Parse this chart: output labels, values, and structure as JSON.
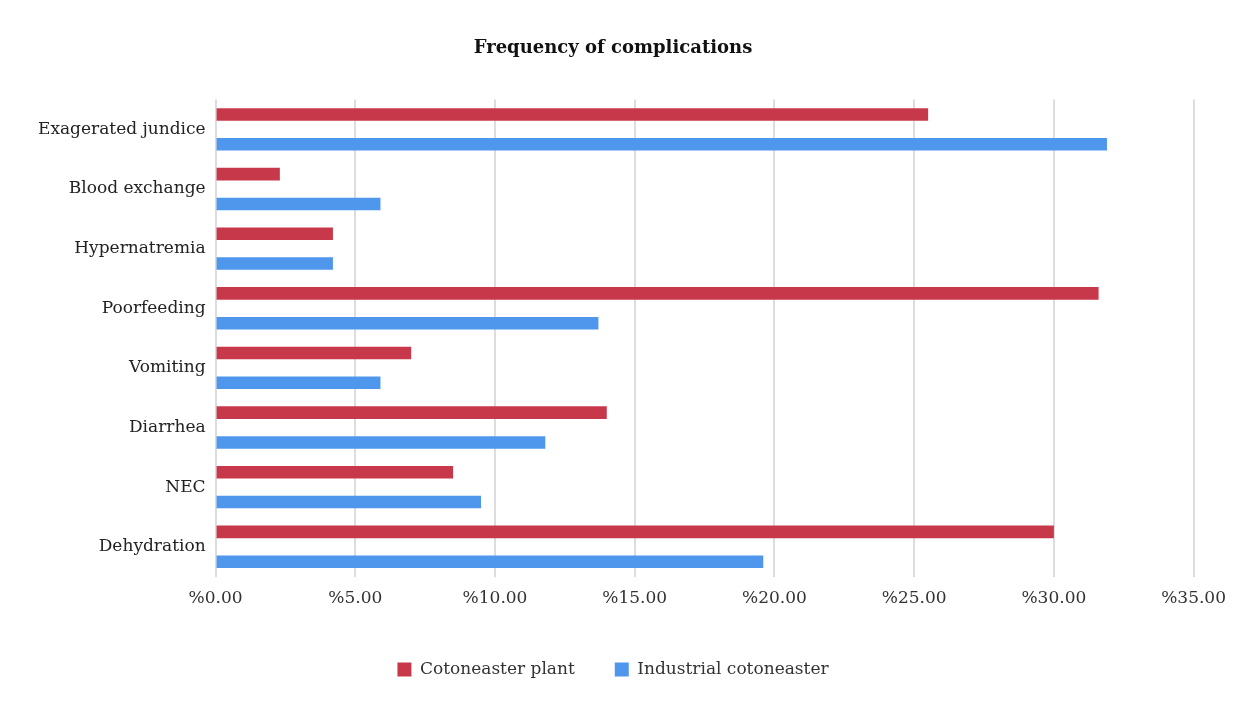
{
  "chart_data": {
    "type": "bar",
    "orientation": "horizontal",
    "title": "Frequency of complications",
    "categories": [
      "Exagerated jundice",
      "Blood exchange",
      "Hypernatremia",
      "Poorfeeding",
      "Vomiting",
      "Diarrhea",
      "NEC",
      "Dehydration"
    ],
    "series": [
      {
        "name": "Cotoneaster plant",
        "color": "#c8384b",
        "values": [
          25.5,
          2.3,
          4.2,
          31.6,
          7.0,
          14.0,
          8.5,
          30.0
        ]
      },
      {
        "name": "Industrial cotoneaster",
        "color": "#4f97ec",
        "values": [
          31.9,
          5.9,
          4.2,
          13.7,
          5.9,
          11.8,
          9.5,
          19.6
        ]
      }
    ],
    "xlim": [
      0,
      35
    ],
    "xticks": [
      {
        "value": 0,
        "label": "%0.00"
      },
      {
        "value": 5,
        "label": "%5.00"
      },
      {
        "value": 10,
        "label": "%10.00"
      },
      {
        "value": 15,
        "label": "%15.00"
      },
      {
        "value": 20,
        "label": "%20.00"
      },
      {
        "value": 25,
        "label": "%25.00"
      },
      {
        "value": 30,
        "label": "%30.00"
      },
      {
        "value": 35,
        "label": "%35.00"
      }
    ],
    "grid": "x",
    "legend": "bottom"
  }
}
